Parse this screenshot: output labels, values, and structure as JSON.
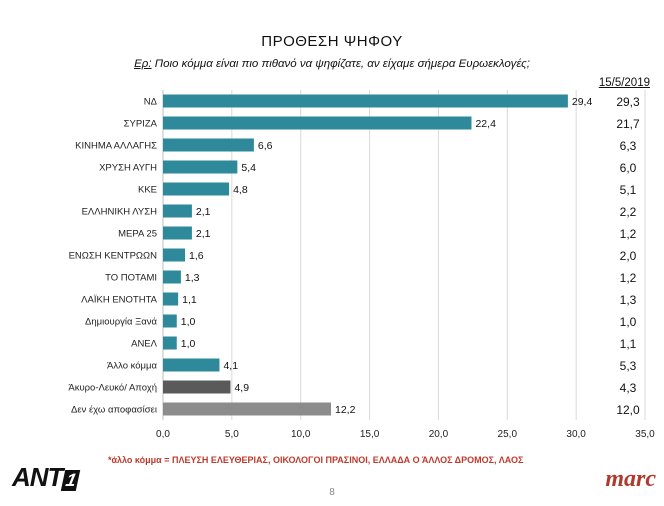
{
  "slide": {
    "title": "ΠΡΟΘΕΣΗ ΨΗΦΟΥ",
    "question_label": "Ερ:",
    "question_text": " Ποιο κόμμα είναι πιο πιθανό να ψηφίζατε, αν είχαμε σήμερα Ευρωεκλογές;",
    "comparison_date": "15/5/2019",
    "footnote": "*άλλο κόμμα = ΠΛΕΥΣΗ ΕΛΕΥΘΕΡΙΑΣ, ΟΙΚΟΛΟΓΟΙ ΠΡΑΣΙΝΟΙ, ΕΛΛΑΔΑ Ο ΆΛΛΟΣ ΔΡΟΜΟΣ, ΛΑΟΣ",
    "page_number": "8",
    "logo_left_main": "ANT",
    "logo_left_number": "1",
    "logo_right": "marc"
  },
  "colors": {
    "teal": "#2e8a9b",
    "dark_gray": "#5a5a5a",
    "gray": "#8c8c8c",
    "accent_red": "#c0392b"
  },
  "chart_data": {
    "type": "bar",
    "orientation": "horizontal",
    "categories": [
      "ΝΔ",
      "ΣΥΡΙΖΑ",
      "ΚΙΝΗΜΑ ΑΛΛΑΓΗΣ",
      "ΧΡΥΣΗ ΑΥΓΗ",
      "ΚΚΕ",
      "ΕΛΛΗΝΙΚΗ ΛΥΣΗ",
      "ΜΕΡΑ 25",
      "ΕΝΩΣΗ ΚΕΝΤΡΩΩΝ",
      "ΤΟ ΠΟΤΑΜΙ",
      "ΛΑΪΚΗ ΕΝΟΤΗΤΑ",
      "Δημιουργία Ξανά",
      "ΑΝΕΛ",
      "Άλλο κόμμα",
      "Άκυρο-Λευκό/ Αποχή",
      "Δεν έχω αποφασίσει"
    ],
    "values": [
      29.4,
      22.4,
      6.6,
      5.4,
      4.8,
      2.1,
      2.1,
      1.6,
      1.3,
      1.1,
      1.0,
      1.0,
      4.1,
      4.9,
      12.2
    ],
    "value_labels": [
      "29,4",
      "22,4",
      "6,6",
      "5,4",
      "4,8",
      "2,1",
      "2,1",
      "1,6",
      "1,3",
      "1,1",
      "1,0",
      "1,0",
      "4,1",
      "4,9",
      "12,2"
    ],
    "bar_colors": [
      "#2e8a9b",
      "#2e8a9b",
      "#2e8a9b",
      "#2e8a9b",
      "#2e8a9b",
      "#2e8a9b",
      "#2e8a9b",
      "#2e8a9b",
      "#2e8a9b",
      "#2e8a9b",
      "#2e8a9b",
      "#2e8a9b",
      "#2e8a9b",
      "#5a5a5a",
      "#8c8c8c"
    ],
    "previous_values": [
      "29,3",
      "21,7",
      "6,3",
      "6,0",
      "5,1",
      "2,2",
      "1,2",
      "2,0",
      "1,2",
      "1,3",
      "1,0",
      "1,1",
      "5,3",
      "4,3",
      "12,0"
    ],
    "xlim": [
      0,
      35
    ],
    "xticks": [
      0,
      5,
      10,
      15,
      20,
      25,
      30,
      35
    ],
    "xtick_labels": [
      "0,0",
      "5,0",
      "10,0",
      "15,0",
      "20,0",
      "25,0",
      "30,0",
      "35,0"
    ],
    "grid": "vertical",
    "xlabel": "",
    "ylabel": ""
  }
}
